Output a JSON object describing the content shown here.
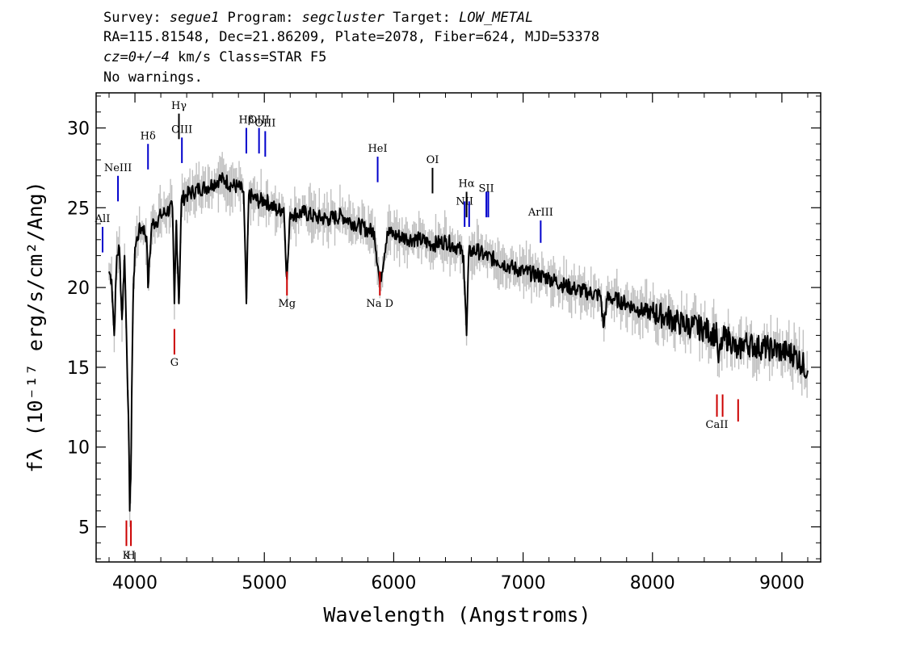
{
  "header": {
    "line1": {
      "survey_key": "Survey: ",
      "survey": "segue1",
      "program_key": " Program: ",
      "program": "segcluster",
      "target_key": " Target: ",
      "target": "LOW_METAL"
    },
    "line2": "RA=115.81548, Dec=21.86209, Plate=2078, Fiber=624, MJD=53378",
    "line3": {
      "cz": "cz=0+/−4",
      "rest": " km/s Class=STAR F5"
    },
    "line4": "No warnings."
  },
  "chart_data": {
    "type": "line",
    "xlabel": "Wavelength (Angstroms)",
    "ylabel": "fλ (10⁻¹⁷ erg/s/cm²/Ang)",
    "xlim": [
      3700,
      9300
    ],
    "ylim": [
      2.8,
      32.2
    ],
    "xticks": [
      4000,
      5000,
      6000,
      7000,
      8000,
      9000
    ],
    "yticks": [
      5,
      10,
      15,
      20,
      25,
      30
    ],
    "series": [
      {
        "role": "flux",
        "color": "#000000",
        "x": [
          3800,
          3820,
          3840,
          3860,
          3880,
          3900,
          3920,
          3935,
          3950,
          3960,
          3968,
          3975,
          3985,
          4000,
          4030,
          4060,
          4090,
          4101,
          4130,
          4160,
          4200,
          4250,
          4290,
          4305,
          4320,
          4340,
          4360,
          4400,
          4450,
          4500,
          4550,
          4600,
          4650,
          4700,
          4750,
          4800,
          4840,
          4861,
          4880,
          4920,
          4960,
          5000,
          5050,
          5100,
          5150,
          5175,
          5200,
          5250,
          5300,
          5400,
          5500,
          5600,
          5700,
          5800,
          5850,
          5893,
          5950,
          6000,
          6100,
          6200,
          6300,
          6400,
          6500,
          6540,
          6563,
          6580,
          6600,
          6650,
          6700,
          6800,
          6900,
          7000,
          7100,
          7200,
          7300,
          7400,
          7500,
          7600,
          7620,
          7650,
          7700,
          7800,
          7900,
          8000,
          8100,
          8200,
          8300,
          8400,
          8498,
          8510,
          8542,
          8600,
          8662,
          8700,
          8800,
          8900,
          9000,
          9100,
          9200
        ],
        "y": [
          21,
          20.5,
          17,
          22,
          22.5,
          18,
          22,
          17,
          12,
          6,
          8,
          13,
          19,
          22.5,
          23.5,
          23.8,
          23.2,
          20,
          24,
          24.1,
          24.5,
          24.8,
          25,
          19,
          24.2,
          19,
          25.5,
          25.8,
          26,
          26.2,
          26.3,
          26.5,
          26.8,
          26.7,
          26.4,
          26.3,
          26,
          19,
          25.8,
          25.6,
          25.4,
          25.5,
          25.2,
          24.8,
          25,
          20.5,
          24.7,
          24.6,
          24.7,
          24.4,
          24.3,
          24.5,
          24,
          23.6,
          23.5,
          20.2,
          23.5,
          23.3,
          23.1,
          23,
          22.7,
          22.9,
          22.5,
          22,
          17,
          22.1,
          22.3,
          22.3,
          22,
          21.7,
          21.3,
          21,
          20.8,
          20.6,
          20.2,
          19.9,
          19.7,
          19.5,
          17.5,
          19.3,
          19.3,
          19,
          18.6,
          18.4,
          18.2,
          17.8,
          17.6,
          17.4,
          17,
          15.3,
          16.8,
          16.8,
          15.8,
          16.6,
          16.3,
          16.2,
          16,
          15.8,
          14.8
        ]
      },
      {
        "role": "error_band",
        "color": "#c0c0c0",
        "halfwidth": 0.8
      }
    ],
    "lines": [
      {
        "label": "AlI",
        "x": 3750,
        "y_range": [
          22.2,
          23.8
        ],
        "color": "#0000cc",
        "label_y": 24.1
      },
      {
        "label": "NeIII",
        "x": 3869,
        "y_range": [
          25.4,
          27.0
        ],
        "color": "#0000cc",
        "label_y": 27.3
      },
      {
        "label": "Hδ",
        "x": 4101,
        "y_range": [
          27.4,
          29.0
        ],
        "color": "#0000cc",
        "label_y": 29.3
      },
      {
        "label": "Hγ",
        "x": 4340,
        "y_range": [
          29.3,
          30.9
        ],
        "color": "#000000",
        "label_y": 31.2
      },
      {
        "label": "OIII",
        "x": 4363,
        "y_range": [
          27.8,
          29.4
        ],
        "color": "#0000cc",
        "label_y": 29.7
      },
      {
        "label": "Hβ",
        "x": 4861,
        "y_range": [
          28.4,
          30.0
        ],
        "color": "#0000cc",
        "label_y": 30.3
      },
      {
        "label": "OIII",
        "x": 4959,
        "y_range": [
          28.4,
          30.0
        ],
        "color": "#0000cc",
        "label_y": 30.3
      },
      {
        "label": "OIII",
        "x": 5007,
        "y_range": [
          28.2,
          29.8
        ],
        "color": "#0000cc",
        "label_y": 30.1
      },
      {
        "label": "HeI",
        "x": 5876,
        "y_range": [
          26.6,
          28.2
        ],
        "color": "#0000cc",
        "label_y": 28.5
      },
      {
        "label": "OI",
        "x": 6300,
        "y_range": [
          25.9,
          27.5
        ],
        "color": "#000000",
        "label_y": 27.8
      },
      {
        "label": "NII",
        "x": 6548,
        "y_range": [
          23.8,
          25.4
        ],
        "color": "#0000cc",
        "label_y": 25.2
      },
      {
        "label": "Hα",
        "x": 6563,
        "y_range": [
          24.4,
          26.0
        ],
        "color": "#000000",
        "label_y": 26.3
      },
      {
        "label": "NII",
        "x": 6583,
        "y_range": [
          23.8,
          25.4
        ],
        "color": "#0000cc",
        "label_y": 0
      },
      {
        "label": "SII",
        "x": 6716,
        "y_range": [
          24.4,
          26.0
        ],
        "color": "#0000cc",
        "label_y": 26.0
      },
      {
        "label": "SII",
        "x": 6731,
        "y_range": [
          24.4,
          26.0
        ],
        "color": "#0000cc",
        "label_y": 0
      },
      {
        "label": "ArIII",
        "x": 7136,
        "y_range": [
          22.8,
          24.2
        ],
        "color": "#0000cc",
        "label_y": 24.5
      },
      {
        "label": "K",
        "x": 3934,
        "y_range": [
          3.8,
          5.4
        ],
        "color": "#cc0000",
        "label_y": 3.0
      },
      {
        "label": "H",
        "x": 3969,
        "y_range": [
          3.8,
          5.4
        ],
        "color": "#cc0000",
        "label_y": 3.0
      },
      {
        "label": "G",
        "x": 4305,
        "y_range": [
          15.8,
          17.4
        ],
        "color": "#cc0000",
        "label_y": 15.1
      },
      {
        "label": "Mg",
        "x": 5175,
        "y_range": [
          19.5,
          21.0
        ],
        "color": "#cc0000",
        "label_y": 18.8
      },
      {
        "label": "Na D",
        "x": 5893,
        "y_range": [
          19.5,
          21.0
        ],
        "color": "#cc0000",
        "label_y": 18.8
      },
      {
        "label": "CaII",
        "x": 8498,
        "y_range": [
          11.9,
          13.3
        ],
        "color": "#cc0000",
        "label_y": 11.2
      },
      {
        "label": "CaII",
        "x": 8542,
        "y_range": [
          11.9,
          13.3
        ],
        "color": "#cc0000",
        "label_y": 0
      },
      {
        "label": "CaII",
        "x": 8662,
        "y_range": [
          11.6,
          13.0
        ],
        "color": "#cc0000",
        "label_y": 0
      }
    ],
    "grid": false
  }
}
